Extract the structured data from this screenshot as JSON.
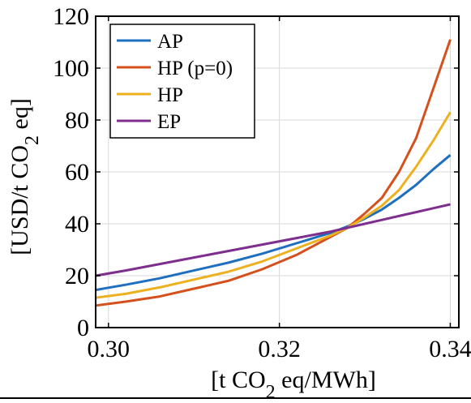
{
  "chart_data": {
    "type": "line",
    "xlabel": "[t CO2 eq/MWh]",
    "ylabel": "[USD/t CO2 eq]",
    "xlim": [
      0.2985,
      0.341
    ],
    "ylim": [
      0,
      120
    ],
    "xticks": [
      {
        "value": 0.3,
        "label": "0.30"
      },
      {
        "value": 0.32,
        "label": "0.32"
      },
      {
        "value": 0.34,
        "label": "0.34"
      }
    ],
    "yticks": [
      {
        "value": 0,
        "label": "0"
      },
      {
        "value": 20,
        "label": "20"
      },
      {
        "value": 40,
        "label": "40"
      },
      {
        "value": 60,
        "label": "60"
      },
      {
        "value": 80,
        "label": "80"
      },
      {
        "value": 100,
        "label": "100"
      },
      {
        "value": 120,
        "label": "120"
      }
    ],
    "grid": true,
    "legend": "top-left",
    "x": [
      0.2985,
      0.302,
      0.306,
      0.31,
      0.314,
      0.318,
      0.322,
      0.326,
      0.328,
      0.33,
      0.332,
      0.334,
      0.336,
      0.338,
      0.34
    ],
    "series": [
      {
        "name": "AP",
        "color": "#1f6fbf",
        "values": [
          14.5,
          16.5,
          19.0,
          22.0,
          25.0,
          28.5,
          32.5,
          36.5,
          39.0,
          42.0,
          45.5,
          50.0,
          55.0,
          61.0,
          66.5
        ]
      },
      {
        "name": "HP (p=0)",
        "color": "#d4501c",
        "values": [
          8.5,
          10.0,
          12.0,
          15.0,
          18.0,
          22.5,
          28.0,
          35.0,
          38.5,
          44.0,
          50.0,
          60.0,
          73.0,
          92.0,
          111.0
        ]
      },
      {
        "name": "HP",
        "color": "#edb120",
        "values": [
          11.5,
          13.0,
          15.5,
          18.5,
          21.5,
          25.5,
          30.5,
          35.5,
          38.5,
          42.5,
          47.0,
          53.0,
          62.0,
          72.0,
          83.0
        ]
      },
      {
        "name": "EP",
        "color": "#7e2f8e",
        "values": [
          20.0,
          22.0,
          24.5,
          27.0,
          29.5,
          32.0,
          34.5,
          37.0,
          38.5,
          40.0,
          41.5,
          43.0,
          44.5,
          46.0,
          47.5
        ]
      }
    ]
  }
}
